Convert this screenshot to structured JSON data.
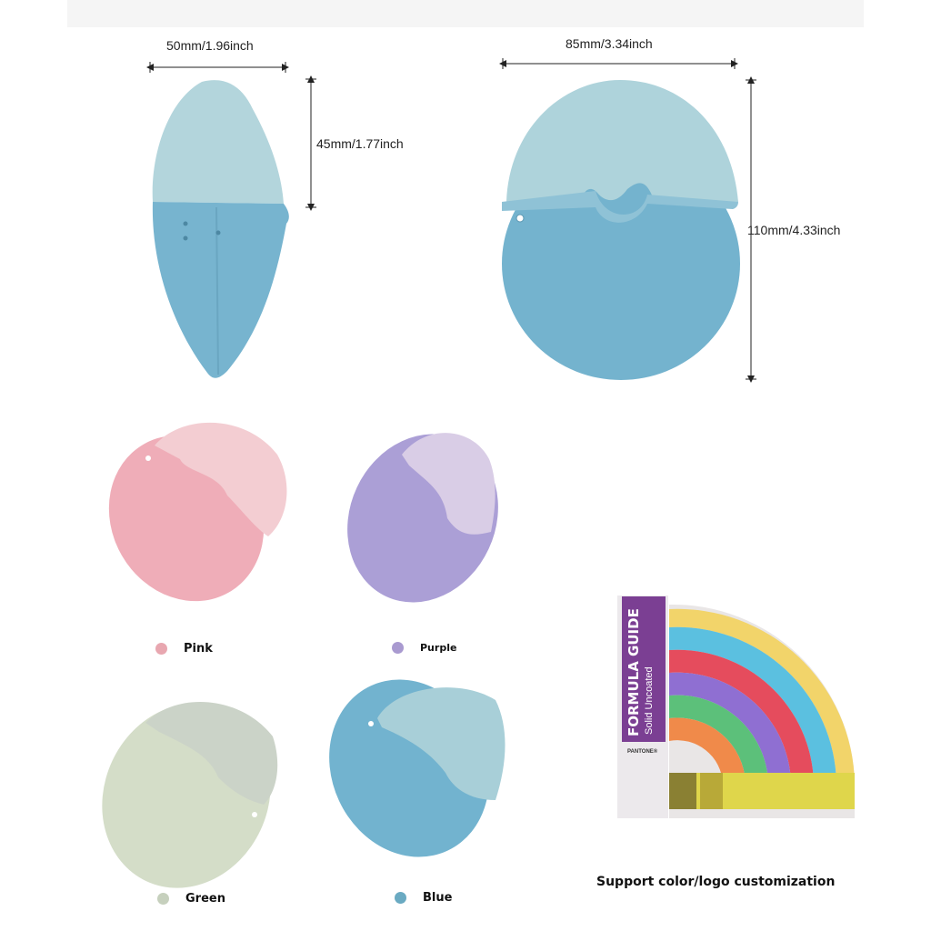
{
  "dimensions": {
    "side_width": "50mm/1.96inch",
    "side_height": "45mm/1.77inch",
    "front_width": "85mm/3.34inch",
    "front_height": "110mm/4.33inch"
  },
  "colors": [
    {
      "label": "Pink",
      "hex": "#e8a7b0",
      "cap": "#f3cdd2",
      "body": "#efadb8"
    },
    {
      "label": "Purple",
      "hex": "#a99ad0",
      "cap": "#d9cde6",
      "body": "#ab9fd6"
    },
    {
      "label": "Green",
      "hex": "#c6d0bd",
      "cap": "#cbd3c8",
      "body": "#d4ddc8"
    },
    {
      "label": "Blue",
      "hex": "#6aaac2",
      "cap": "#a8cfd8",
      "body": "#72b3cf"
    }
  ],
  "pantone": {
    "title": "FORMULA GUIDE",
    "subtitle": "Solid Uncoated",
    "brand": "PANTONE®",
    "caption": "Support color/logo customization"
  }
}
